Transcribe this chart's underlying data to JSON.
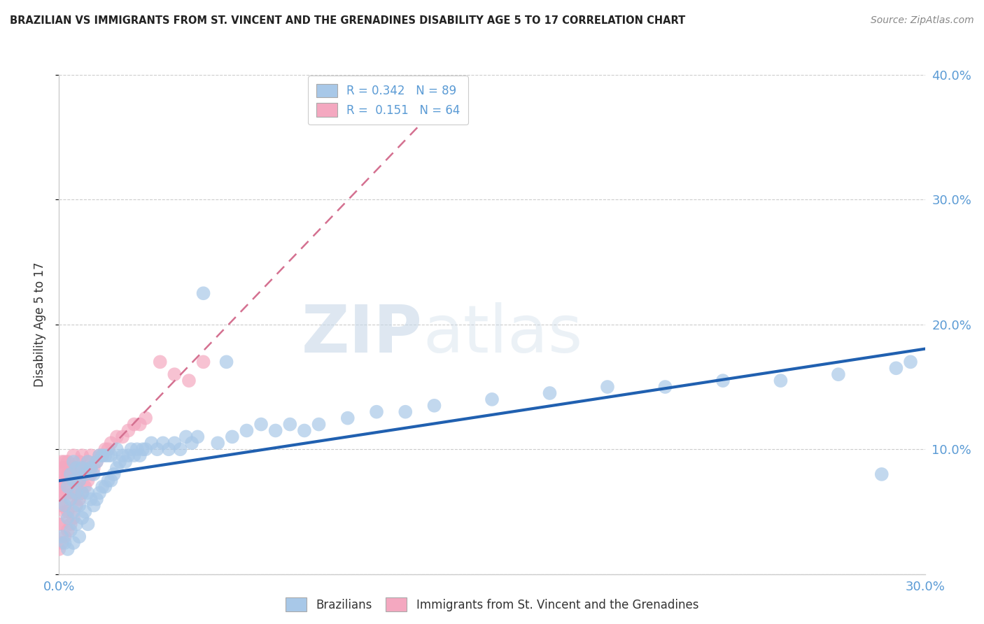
{
  "title": "BRAZILIAN VS IMMIGRANTS FROM ST. VINCENT AND THE GRENADINES DISABILITY AGE 5 TO 17 CORRELATION CHART",
  "source": "Source: ZipAtlas.com",
  "ylabel": "Disability Age 5 to 17",
  "xlim": [
    0.0,
    0.3
  ],
  "ylim": [
    0.0,
    0.4
  ],
  "blue_R": 0.342,
  "blue_N": 89,
  "pink_R": 0.151,
  "pink_N": 64,
  "blue_color": "#a8c8e8",
  "pink_color": "#f4a8c0",
  "trend_blue_color": "#2060b0",
  "trend_pink_color": "#d47090",
  "legend_label_blue": "Brazilians",
  "legend_label_pink": "Immigrants from St. Vincent and the Grenadines",
  "watermark_zip": "ZIP",
  "watermark_atlas": "atlas",
  "background_color": "#ffffff",
  "grid_color": "#cccccc",
  "tick_color": "#5b9bd5",
  "title_color": "#222222",
  "source_color": "#888888",
  "blue_x": [
    0.001,
    0.002,
    0.002,
    0.003,
    0.003,
    0.003,
    0.004,
    0.004,
    0.004,
    0.005,
    0.005,
    0.005,
    0.005,
    0.006,
    0.006,
    0.006,
    0.007,
    0.007,
    0.007,
    0.008,
    0.008,
    0.008,
    0.009,
    0.009,
    0.01,
    0.01,
    0.01,
    0.011,
    0.011,
    0.012,
    0.012,
    0.013,
    0.013,
    0.014,
    0.014,
    0.015,
    0.015,
    0.016,
    0.016,
    0.017,
    0.017,
    0.018,
    0.018,
    0.019,
    0.02,
    0.02,
    0.021,
    0.022,
    0.023,
    0.024,
    0.025,
    0.026,
    0.027,
    0.028,
    0.029,
    0.03,
    0.032,
    0.034,
    0.036,
    0.038,
    0.04,
    0.042,
    0.044,
    0.046,
    0.048,
    0.05,
    0.055,
    0.058,
    0.06,
    0.065,
    0.07,
    0.075,
    0.08,
    0.085,
    0.09,
    0.1,
    0.11,
    0.12,
    0.13,
    0.15,
    0.17,
    0.19,
    0.21,
    0.23,
    0.25,
    0.27,
    0.285,
    0.29,
    0.295
  ],
  "blue_y": [
    0.03,
    0.025,
    0.055,
    0.02,
    0.045,
    0.07,
    0.035,
    0.06,
    0.08,
    0.025,
    0.05,
    0.075,
    0.09,
    0.04,
    0.065,
    0.085,
    0.03,
    0.055,
    0.075,
    0.045,
    0.065,
    0.085,
    0.05,
    0.08,
    0.04,
    0.065,
    0.09,
    0.06,
    0.085,
    0.055,
    0.08,
    0.06,
    0.09,
    0.065,
    0.095,
    0.07,
    0.095,
    0.07,
    0.095,
    0.075,
    0.095,
    0.075,
    0.095,
    0.08,
    0.085,
    0.1,
    0.09,
    0.095,
    0.09,
    0.095,
    0.1,
    0.095,
    0.1,
    0.095,
    0.1,
    0.1,
    0.105,
    0.1,
    0.105,
    0.1,
    0.105,
    0.1,
    0.11,
    0.105,
    0.11,
    0.225,
    0.105,
    0.17,
    0.11,
    0.115,
    0.12,
    0.115,
    0.12,
    0.115,
    0.12,
    0.125,
    0.13,
    0.13,
    0.135,
    0.14,
    0.145,
    0.15,
    0.15,
    0.155,
    0.155,
    0.16,
    0.08,
    0.165,
    0.17
  ],
  "pink_x": [
    0.0,
    0.0,
    0.0,
    0.0,
    0.0,
    0.0,
    0.001,
    0.001,
    0.001,
    0.001,
    0.001,
    0.001,
    0.001,
    0.002,
    0.002,
    0.002,
    0.002,
    0.002,
    0.002,
    0.003,
    0.003,
    0.003,
    0.003,
    0.003,
    0.004,
    0.004,
    0.004,
    0.004,
    0.005,
    0.005,
    0.005,
    0.005,
    0.006,
    0.006,
    0.006,
    0.007,
    0.007,
    0.007,
    0.008,
    0.008,
    0.008,
    0.009,
    0.009,
    0.01,
    0.01,
    0.011,
    0.011,
    0.012,
    0.013,
    0.014,
    0.015,
    0.016,
    0.017,
    0.018,
    0.02,
    0.022,
    0.024,
    0.026,
    0.028,
    0.03,
    0.035,
    0.04,
    0.045,
    0.05
  ],
  "pink_y": [
    0.02,
    0.04,
    0.055,
    0.065,
    0.07,
    0.08,
    0.025,
    0.04,
    0.055,
    0.065,
    0.075,
    0.085,
    0.09,
    0.03,
    0.05,
    0.065,
    0.075,
    0.085,
    0.09,
    0.035,
    0.05,
    0.065,
    0.08,
    0.09,
    0.04,
    0.06,
    0.075,
    0.085,
    0.045,
    0.065,
    0.08,
    0.095,
    0.055,
    0.07,
    0.085,
    0.06,
    0.075,
    0.09,
    0.065,
    0.08,
    0.095,
    0.07,
    0.085,
    0.075,
    0.09,
    0.08,
    0.095,
    0.085,
    0.09,
    0.095,
    0.095,
    0.1,
    0.1,
    0.105,
    0.11,
    0.11,
    0.115,
    0.12,
    0.12,
    0.125,
    0.17,
    0.16,
    0.155,
    0.17
  ]
}
